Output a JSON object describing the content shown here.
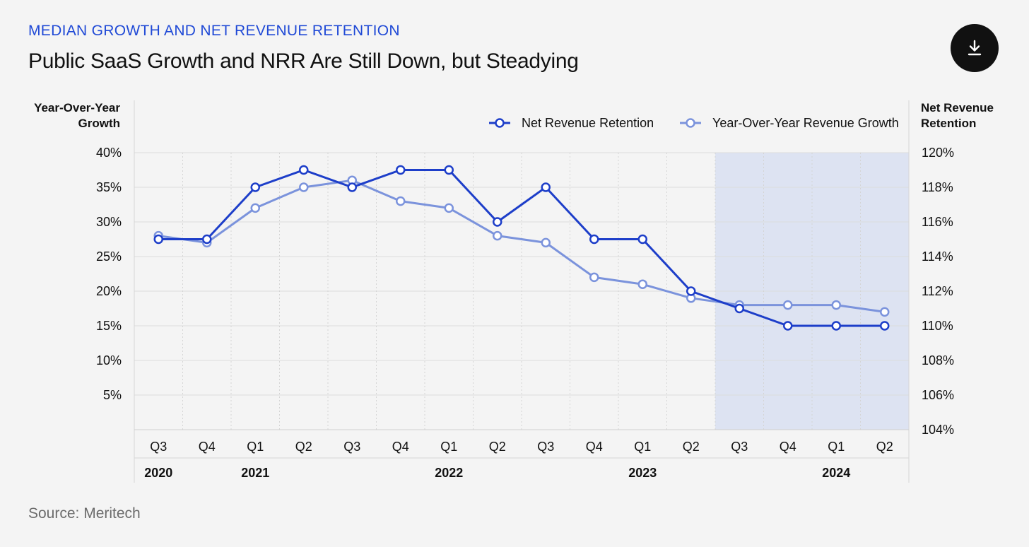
{
  "header": {
    "eyebrow": "MEDIAN GROWTH AND NET REVENUE RETENTION",
    "title": "Public SaaS Growth and NRR Are Still Down, but Steadying",
    "download_icon": "download-icon"
  },
  "footer": {
    "source": "Source: Meritech"
  },
  "colors": {
    "nrr": "#1d3ec9",
    "growth": "#7b93dc",
    "shaded": "#dde3f2",
    "accent": "#1f49d6"
  },
  "chart_data": {
    "type": "line",
    "left_axis_title": [
      "Year-Over-Year",
      "Growth"
    ],
    "right_axis_title": [
      "Net Revenue",
      "Retention"
    ],
    "categories": [
      "Q3",
      "Q4",
      "Q1",
      "Q2",
      "Q3",
      "Q4",
      "Q1",
      "Q2",
      "Q3",
      "Q4",
      "Q1",
      "Q2",
      "Q3",
      "Q4",
      "Q1",
      "Q2"
    ],
    "years": [
      {
        "label": "2020",
        "index": 0
      },
      {
        "label": "2021",
        "index": 2
      },
      {
        "label": "2022",
        "index": 6
      },
      {
        "label": "2023",
        "index": 10
      },
      {
        "label": "2024",
        "index": 14
      }
    ],
    "left_ticks": [
      "40%",
      "35%",
      "30%",
      "25%",
      "20%",
      "15%",
      "10%",
      "5%"
    ],
    "right_ticks": [
      "120%",
      "118%",
      "116%",
      "114%",
      "112%",
      "110%",
      "108%",
      "106%",
      "104%"
    ],
    "left_ylim": [
      0,
      40
    ],
    "right_ylim": [
      104,
      120
    ],
    "shaded_from_index": 12,
    "series": [
      {
        "name": "Net Revenue Retention",
        "axis": "right",
        "values": [
          115,
          115,
          118,
          119,
          118,
          119,
          119,
          116,
          118,
          115,
          115,
          112,
          111,
          110,
          110,
          110
        ]
      },
      {
        "name": "Year-Over-Year Revenue Growth",
        "axis": "left",
        "values": [
          28,
          27,
          32,
          35,
          36,
          33,
          32,
          28,
          27,
          22,
          21,
          19,
          18,
          18,
          18,
          17
        ]
      }
    ],
    "legend_position": "top-right",
    "grid": true
  }
}
